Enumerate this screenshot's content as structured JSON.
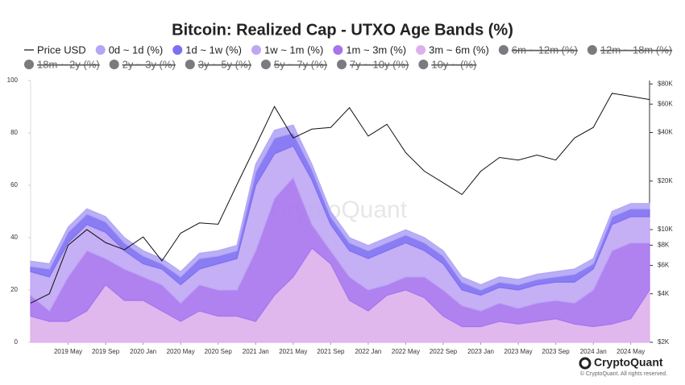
{
  "chart_data": {
    "type": "area",
    "title": "Bitcoin: Realized Cap - UTXO Age Bands (%)",
    "x": [
      "2019-01",
      "2019-03",
      "2019-05",
      "2019-07",
      "2019-09",
      "2019-11",
      "2020-01",
      "2020-03",
      "2020-05",
      "2020-07",
      "2020-09",
      "2020-11",
      "2021-01",
      "2021-03",
      "2021-05",
      "2021-07",
      "2021-09",
      "2021-11",
      "2022-01",
      "2022-03",
      "2022-05",
      "2022-07",
      "2022-09",
      "2022-11",
      "2023-01",
      "2023-03",
      "2023-05",
      "2023-07",
      "2023-09",
      "2023-11",
      "2024-01",
      "2024-03",
      "2024-05",
      "2024-07"
    ],
    "xlim": [
      "2019-01",
      "2024-07"
    ],
    "xticks": [
      {
        "value": "2019-05",
        "label": "2019 May"
      },
      {
        "value": "2019-09",
        "label": "2019 Sep"
      },
      {
        "value": "2020-01",
        "label": "2020 Jan"
      },
      {
        "value": "2020-05",
        "label": "2020 May"
      },
      {
        "value": "2020-09",
        "label": "2020 Sep"
      },
      {
        "value": "2021-01",
        "label": "2021 Jan"
      },
      {
        "value": "2021-05",
        "label": "2021 May"
      },
      {
        "value": "2021-09",
        "label": "2021 Sep"
      },
      {
        "value": "2022-01",
        "label": "2022 Jan"
      },
      {
        "value": "2022-05",
        "label": "2022 May"
      },
      {
        "value": "2022-09",
        "label": "2022 Sep"
      },
      {
        "value": "2023-01",
        "label": "2023 Jan"
      },
      {
        "value": "2023-05",
        "label": "2023 May"
      },
      {
        "value": "2023-09",
        "label": "2023 Sep"
      },
      {
        "value": "2024-01",
        "label": "2024 Jan"
      },
      {
        "value": "2024-05",
        "label": "2024 May"
      }
    ],
    "ylim": [
      0,
      100
    ],
    "yticks": [
      0,
      20,
      40,
      60,
      80,
      100
    ],
    "y2lim": [
      2000,
      84000
    ],
    "y2scale": "log",
    "y2ticks": [
      {
        "value": 2000,
        "label": "$2K"
      },
      {
        "value": 4000,
        "label": "$4K"
      },
      {
        "value": 6000,
        "label": "$6K"
      },
      {
        "value": 8000,
        "label": "$8K"
      },
      {
        "value": 10000,
        "label": "$10K"
      },
      {
        "value": 20000,
        "label": "$20K"
      },
      {
        "value": 40000,
        "label": "$40K"
      },
      {
        "value": 60000,
        "label": "$60K"
      },
      {
        "value": 80000,
        "label": "$80K"
      }
    ],
    "stacked": true,
    "series": [
      {
        "name": "Price USD",
        "color": "#111111",
        "axis": "y2",
        "values": [
          3500,
          4000,
          8000,
          10000,
          8300,
          7500,
          9000,
          6400,
          9500,
          11000,
          10800,
          19000,
          33000,
          58000,
          37000,
          42000,
          43000,
          57000,
          38000,
          45000,
          30000,
          23000,
          19500,
          16500,
          23000,
          28000,
          27000,
          29000,
          27000,
          37000,
          43000,
          70000,
          67000,
          64000
        ]
      },
      {
        "name": "0d ~ 1d (%)",
        "color": "#b2a6f6",
        "values": [
          2,
          2,
          2,
          2,
          2,
          2,
          2,
          2,
          2,
          2,
          2,
          2,
          3,
          3,
          3,
          2,
          2,
          2,
          2,
          2,
          2,
          2,
          2,
          2,
          2,
          2,
          2,
          2,
          2,
          2,
          2,
          2,
          2,
          2
        ]
      },
      {
        "name": "1d ~ 1w (%)",
        "color": "#7d6ff2",
        "values": [
          2,
          3,
          4,
          4,
          4,
          3,
          3,
          2,
          3,
          4,
          3,
          3,
          5,
          6,
          5,
          4,
          3,
          3,
          3,
          3,
          3,
          3,
          3,
          3,
          2,
          2,
          2,
          2,
          2,
          3,
          2,
          3,
          3,
          3
        ]
      },
      {
        "name": "1w ~ 1m (%)",
        "color": "#bfa6f4",
        "values": [
          9,
          13,
          13,
          10,
          10,
          7,
          5,
          6,
          7,
          6,
          10,
          12,
          25,
          17,
          12,
          17,
          10,
          10,
          12,
          13,
          13,
          10,
          10,
          6,
          6,
          6,
          7,
          7,
          7,
          8,
          8,
          10,
          10,
          10
        ]
      },
      {
        "name": "1m ~ 3m (%)",
        "color": "#a774ee",
        "values": [
          8,
          4,
          17,
          23,
          10,
          12,
          9,
          10,
          7,
          10,
          10,
          10,
          27,
          37,
          38,
          9,
          5,
          9,
          8,
          4,
          5,
          8,
          10,
          8,
          6,
          7,
          6,
          7,
          7,
          8,
          14,
          28,
          29,
          18
        ]
      },
      {
        "name": "3m ~ 6m (%)",
        "color": "#ddb0ec",
        "values": [
          10,
          8,
          8,
          12,
          22,
          16,
          16,
          12,
          8,
          12,
          10,
          10,
          8,
          18,
          25,
          36,
          30,
          16,
          12,
          18,
          20,
          17,
          10,
          6,
          6,
          8,
          7,
          8,
          9,
          7,
          6,
          7,
          9,
          20
        ]
      }
    ],
    "hidden_series": [
      "6m ~ 12m (%)",
      "12m ~ 18m (%)",
      "18m ~ 2y (%)",
      "2y ~ 3y (%)",
      "3y ~ 5y (%)",
      "5y ~ 7y (%)",
      "7y ~ 10y (%)",
      "10y ~ (%)"
    ],
    "hidden_color": "#7a7a80",
    "grid": false,
    "watermark": "CryptoQuant",
    "brand": "CryptoQuant",
    "copyright": "© CryptoQuant. All rights reserved."
  }
}
